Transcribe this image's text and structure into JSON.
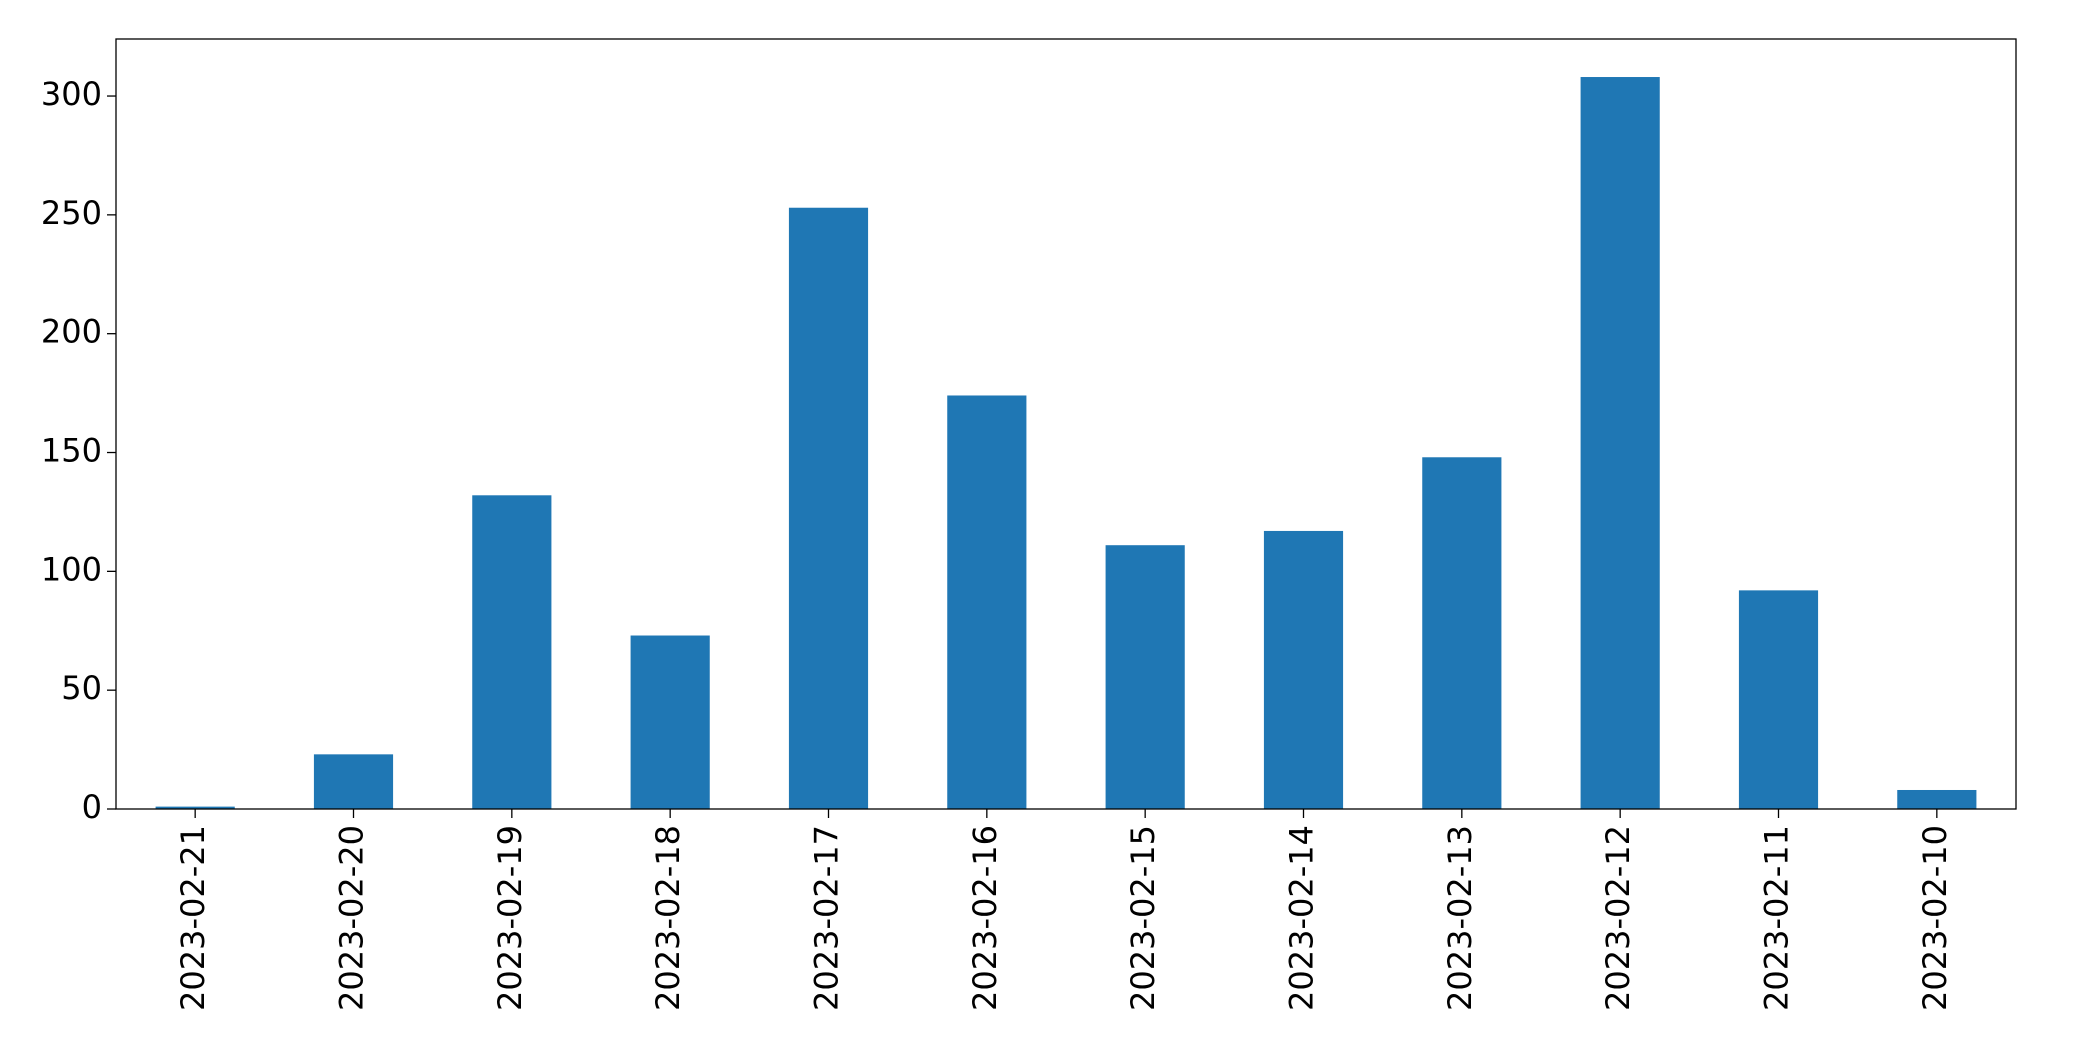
{
  "chart_data": {
    "type": "bar",
    "categories": [
      "2023-02-21",
      "2023-02-20",
      "2023-02-19",
      "2023-02-18",
      "2023-02-17",
      "2023-02-16",
      "2023-02-15",
      "2023-02-14",
      "2023-02-13",
      "2023-02-12",
      "2023-02-11",
      "2023-02-10"
    ],
    "values": [
      1,
      23,
      132,
      73,
      253,
      174,
      111,
      117,
      148,
      308,
      92,
      8
    ],
    "color": "#1f77b4",
    "ylim": [
      0,
      324
    ],
    "yticks": [
      0,
      50,
      100,
      150,
      200,
      250,
      300
    ],
    "grid": false
  }
}
